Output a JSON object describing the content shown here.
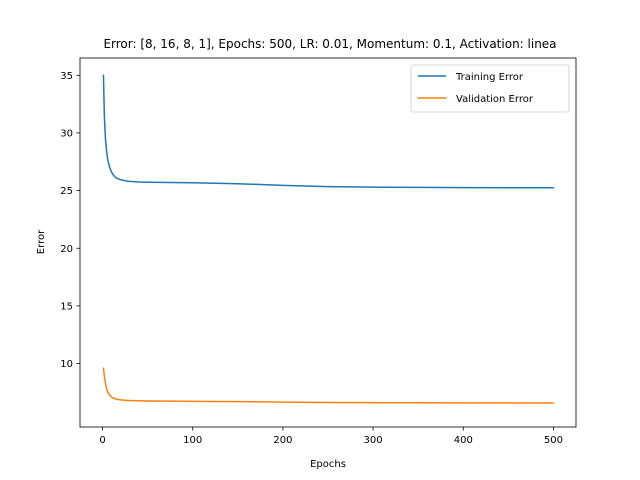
{
  "chart_data": {
    "type": "line",
    "title": "Error: [8, 16, 8, 1], Epochs: 500, LR: 0.01, Momentum: 0.1, Activation: linea",
    "xlabel": "Epochs",
    "ylabel": "Error",
    "xlim": [
      -25,
      525
    ],
    "ylim": [
      4.5,
      36.5
    ],
    "xticks": [
      0,
      100,
      200,
      300,
      400,
      500
    ],
    "yticks": [
      10,
      15,
      20,
      25,
      30,
      35
    ],
    "grid": false,
    "legend_position": "top-right",
    "series": [
      {
        "name": "Training Error",
        "color": "#1f77b4",
        "x": [
          1,
          2,
          3,
          4,
          5,
          6,
          8,
          10,
          12,
          15,
          20,
          25,
          30,
          40,
          50,
          75,
          100,
          150,
          200,
          250,
          300,
          350,
          400,
          450,
          500
        ],
        "y": [
          35.0,
          31.5,
          29.8,
          28.8,
          28.1,
          27.6,
          27.0,
          26.6,
          26.35,
          26.1,
          25.95,
          25.85,
          25.8,
          25.75,
          25.73,
          25.7,
          25.68,
          25.6,
          25.45,
          25.35,
          25.3,
          25.28,
          25.26,
          25.25,
          25.25
        ]
      },
      {
        "name": "Validation Error",
        "color": "#ff7f0e",
        "x": [
          1,
          2,
          3,
          4,
          5,
          6,
          8,
          10,
          12,
          15,
          20,
          25,
          30,
          40,
          50,
          75,
          100,
          150,
          200,
          250,
          300,
          350,
          400,
          450,
          500
        ],
        "y": [
          9.6,
          8.9,
          8.4,
          8.0,
          7.7,
          7.5,
          7.25,
          7.1,
          7.0,
          6.92,
          6.85,
          6.82,
          6.8,
          6.78,
          6.76,
          6.74,
          6.72,
          6.7,
          6.66,
          6.63,
          6.61,
          6.6,
          6.59,
          6.58,
          6.58
        ]
      }
    ]
  }
}
